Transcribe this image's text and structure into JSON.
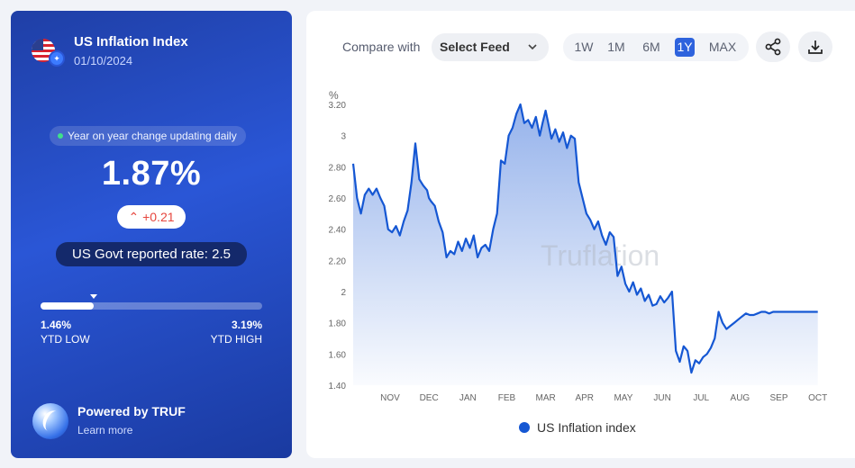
{
  "index_card": {
    "title": "US Inflation Index",
    "date": "01/10/2024",
    "status": "Year on year change updating daily",
    "value": "1.87%",
    "change": "+0.21",
    "govt_rate": "US Govt reported rate: 2.5",
    "ytd_low_value": "1.46%",
    "ytd_low_label": "YTD LOW",
    "ytd_high_value": "3.19%",
    "ytd_high_label": "YTD HIGH",
    "range_progress": 0.24,
    "powered_by": "Powered by TRUF",
    "learn_more": "Learn more"
  },
  "toolbar": {
    "compare_label": "Compare with",
    "feed_select_value": "Select Feed",
    "ranges": [
      "1W",
      "1M",
      "6M",
      "1Y",
      "MAX"
    ],
    "active_range": "1Y"
  },
  "colors": {
    "line": "#1557d3",
    "accent": "#2e63dd",
    "card_bg": "#2a56d6"
  },
  "chart_data": {
    "type": "area",
    "unit_label": "%",
    "watermark": "Truflation",
    "ylim": [
      1.4,
      3.2
    ],
    "yticks": [
      3.2,
      3,
      2.8,
      2.6,
      2.4,
      2.2,
      2,
      1.8,
      1.6,
      1.4
    ],
    "ytick_labels": [
      "3.20",
      "3",
      "2.80",
      "2.60",
      "2.40",
      "2.20",
      "2",
      "1.80",
      "1.60",
      "1.40"
    ],
    "xtick_labels": [
      "NOV",
      "DEC",
      "JAN",
      "FEB",
      "MAR",
      "APR",
      "MAY",
      "JUN",
      "JUL",
      "AUG",
      "SEP",
      "OCT"
    ],
    "x_domain": [
      -0.95,
      11.1
    ],
    "series": [
      {
        "name": "US Inflation index",
        "x": [
          -0.95,
          -0.85,
          -0.75,
          -0.65,
          -0.55,
          -0.45,
          -0.35,
          -0.25,
          -0.15,
          -0.05,
          0.05,
          0.15,
          0.25,
          0.35,
          0.45,
          0.55,
          0.65,
          0.75,
          0.85,
          0.95,
          1.0,
          1.05,
          1.15,
          1.25,
          1.35,
          1.45,
          1.55,
          1.65,
          1.75,
          1.85,
          1.95,
          2.05,
          2.15,
          2.25,
          2.35,
          2.45,
          2.55,
          2.65,
          2.75,
          2.85,
          2.95,
          3.05,
          3.15,
          3.25,
          3.35,
          3.45,
          3.55,
          3.65,
          3.75,
          3.85,
          3.92,
          4.0,
          4.05,
          4.15,
          4.25,
          4.35,
          4.45,
          4.55,
          4.65,
          4.75,
          4.85,
          4.95,
          5.05,
          5.15,
          5.25,
          5.35,
          5.45,
          5.55,
          5.65,
          5.75,
          5.85,
          5.95,
          6.05,
          6.15,
          6.25,
          6.35,
          6.45,
          6.55,
          6.65,
          6.75,
          6.85,
          6.95,
          7.05,
          7.15,
          7.25,
          7.35,
          7.45,
          7.55,
          7.65,
          7.75,
          7.85,
          7.95,
          8.05,
          8.15,
          8.25,
          8.35,
          8.45,
          8.55,
          8.65,
          8.75,
          8.85,
          8.95,
          9.05,
          9.15,
          9.25,
          9.35,
          9.45,
          9.55,
          9.65,
          9.75,
          9.85,
          9.95,
          10.05,
          10.15,
          10.25,
          10.35,
          10.45,
          10.55,
          10.65,
          10.75,
          10.85,
          10.95,
          11.0
        ],
        "values": [
          2.82,
          2.6,
          2.5,
          2.62,
          2.66,
          2.62,
          2.66,
          2.6,
          2.55,
          2.4,
          2.38,
          2.42,
          2.36,
          2.45,
          2.52,
          2.7,
          2.95,
          2.72,
          2.68,
          2.65,
          2.6,
          2.58,
          2.55,
          2.45,
          2.38,
          2.22,
          2.26,
          2.24,
          2.32,
          2.26,
          2.34,
          2.28,
          2.36,
          2.22,
          2.28,
          2.3,
          2.26,
          2.4,
          2.5,
          2.84,
          2.82,
          3.0,
          3.05,
          3.14,
          3.2,
          3.08,
          3.1,
          3.05,
          3.12,
          3.0,
          3.08,
          3.16,
          3.1,
          2.98,
          3.04,
          2.96,
          3.02,
          2.92,
          3.0,
          2.98,
          2.7,
          2.6,
          2.5,
          2.46,
          2.4,
          2.45,
          2.36,
          2.3,
          2.38,
          2.35,
          2.1,
          2.16,
          2.05,
          2.0,
          2.06,
          1.98,
          2.02,
          1.94,
          1.98,
          1.91,
          1.92,
          1.97,
          1.93,
          1.96,
          2.0,
          1.62,
          1.55,
          1.65,
          1.62,
          1.48,
          1.56,
          1.54,
          1.58,
          1.6,
          1.64,
          1.7,
          1.87,
          1.8,
          1.76,
          1.78,
          1.8,
          1.82,
          1.84,
          1.86,
          1.85,
          1.85,
          1.86,
          1.87,
          1.87,
          1.86,
          1.87,
          1.87,
          1.87,
          1.87,
          1.87,
          1.87,
          1.87,
          1.87,
          1.87,
          1.87,
          1.87,
          1.87,
          1.87
        ]
      }
    ],
    "grid": false,
    "legend": "bottom-center"
  }
}
